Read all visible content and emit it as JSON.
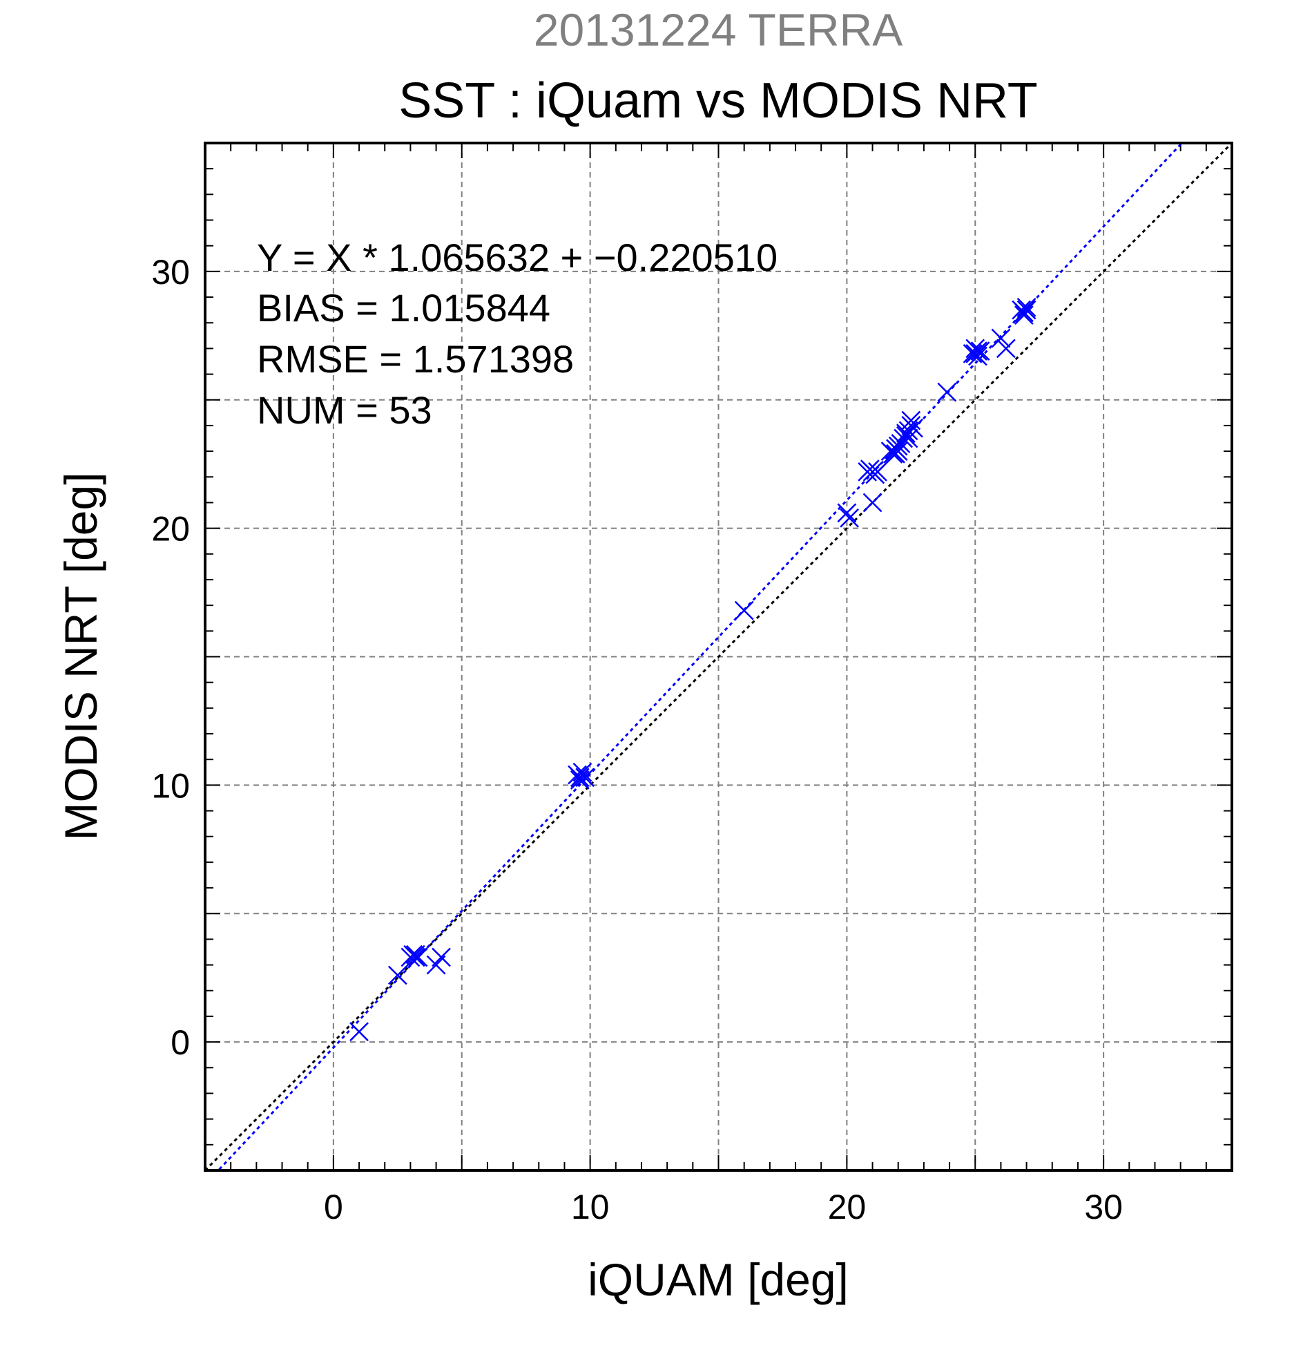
{
  "chart_data": {
    "type": "scatter",
    "supertitle": "20131224 TERRA",
    "title": "SST : iQuam vs MODIS NRT",
    "xlabel": "iQUAM [deg]",
    "ylabel": "MODIS NRT [deg]",
    "xlim": [
      -5,
      35
    ],
    "ylim": [
      -5,
      35
    ],
    "xticks": [
      0,
      10,
      20,
      30
    ],
    "yticks": [
      0,
      10,
      20,
      30
    ],
    "grid": true,
    "annotations": [
      "Y = X * 1.065632 + −0.220510",
      "BIAS = 1.015844",
      "RMSE = 1.571398",
      "NUM = 53"
    ],
    "fit_line": {
      "slope": 1.065632,
      "intercept": -0.22051
    },
    "identity_line": {
      "slope": 1,
      "intercept": 0
    },
    "colors": {
      "points": "#0000ff",
      "fit_line": "#0000ff",
      "identity_line": "#000000",
      "grid": "#808080",
      "supertitle": "#808080"
    },
    "x": [
      1.0,
      2.5,
      3.0,
      3.1,
      3.2,
      3.3,
      3.2,
      4.0,
      4.2,
      9.5,
      9.6,
      9.7,
      9.8,
      9.6,
      16.0,
      20.0,
      20.1,
      20.8,
      20.9,
      21.0,
      21.1,
      21.2,
      21.0,
      21.7,
      21.8,
      21.9,
      22.0,
      22.1,
      22.2,
      22.3,
      22.4,
      22.5,
      22.6,
      22.3,
      22.4,
      22.5,
      23.9,
      24.9,
      25.0,
      25.1,
      25.2,
      25.0,
      26.0,
      26.2,
      26.8,
      26.9,
      27.0,
      26.9,
      27.0,
      22.0,
      21.9,
      25.1,
      26.9
    ],
    "y": [
      0.4,
      2.6,
      3.3,
      3.4,
      3.3,
      3.3,
      3.4,
      3.0,
      3.3,
      10.4,
      10.3,
      10.5,
      10.3,
      10.2,
      16.8,
      20.6,
      20.4,
      22.2,
      22.3,
      22.2,
      22.1,
      22.2,
      21.0,
      23.0,
      22.9,
      23.1,
      23.2,
      23.3,
      23.5,
      23.6,
      23.8,
      24.0,
      23.9,
      23.7,
      23.5,
      24.2,
      25.3,
      26.8,
      27.0,
      26.7,
      26.9,
      26.8,
      27.4,
      27.0,
      28.5,
      28.4,
      28.6,
      28.3,
      28.5,
      23.0,
      22.9,
      26.9,
      28.4
    ]
  }
}
